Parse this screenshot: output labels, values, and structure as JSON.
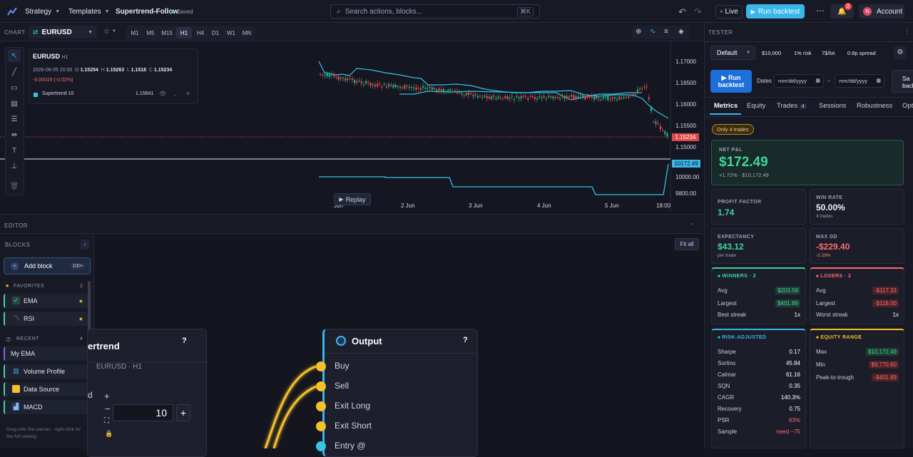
{
  "topbar": {
    "strategy": "Strategy",
    "templates": "Templates",
    "doc_name": "Supertrend-Follow",
    "saved": "Saved",
    "search_placeholder": "Search actions, blocks...",
    "search_shortcut": "⌘K",
    "live": "Live",
    "run_backtest": "Run backtest",
    "notif_count": "2",
    "account_initial": "N",
    "account": "Account"
  },
  "chart_header": {
    "section": "CHART",
    "symbol": "EURUSD",
    "star": "☆",
    "timeframes": [
      "M1",
      "M5",
      "M15",
      "H1",
      "H4",
      "D1",
      "W1",
      "MN"
    ],
    "active_tf": "H1"
  },
  "chart_info": {
    "symbol": "EURUSD",
    "tf": "H1",
    "date": "2026-06-05 20:00",
    "o_label": "O",
    "o": "1.15254",
    "h_label": "H",
    "h": "1.15263",
    "l_label": "L",
    "l": "1.1518",
    "c_label": "C",
    "c": "1.15234",
    "change": "-0.00019 (-0.02%)",
    "indicator_name": "Supertrend 10",
    "indicator_value": "1.15641"
  },
  "chart": {
    "price_ticks": [
      "1.17000",
      "1.16500",
      "1.16000",
      "1.15500",
      "1.15000"
    ],
    "current_price": "1.15234",
    "equity_ticks": [
      "10000.00",
      "9800.00"
    ],
    "equity_current": "10172.49",
    "x_ticks": [
      "Jun",
      "2 Jun",
      "3 Jun",
      "4 Jun",
      "5 Jun",
      "18:00"
    ],
    "replay": "Replay"
  },
  "editor": {
    "section": "EDITOR",
    "blocks_label": "BLOCKS",
    "add_block": "Add block",
    "add_count": "100+",
    "favorites": "FAVORITES",
    "favorites_count": "2",
    "fav_items": [
      "EMA",
      "RSI"
    ],
    "recent": "RECENT",
    "recent_count": "4",
    "recent_items": [
      "My EMA",
      "Volume Profile",
      "Data Source",
      "MACD"
    ],
    "hint": "Drag onto the canvas · right-click for the full catalog",
    "fit_all": "Fit all"
  },
  "nodes": {
    "left_title": "ertrend",
    "left_sub": "EURUSD · H1",
    "left_field_label": "d",
    "left_field_value": "10",
    "help": "?",
    "output_title": "Output",
    "outputs": [
      "Buy",
      "Sell",
      "Exit Long",
      "Exit Short",
      "Entry @"
    ]
  },
  "tester": {
    "section": "TESTER",
    "preset": "Default",
    "capital": "$10,000",
    "risk": "1% risk",
    "lot": "7$/lot",
    "spread": "0.8p spread",
    "run": "Run backtest",
    "dates_label": "Dates",
    "date_placeholder": "mm/dd/yyyy",
    "date_sep": "–",
    "save": "Sa backt",
    "tabs": [
      "Metrics",
      "Equity",
      "Trades",
      "Sessions",
      "Robustness",
      "Opti"
    ],
    "trades_count": "4",
    "warning": "Only 4 trades",
    "net_pl_label": "NET P&L",
    "net_pl": "$172.49",
    "net_pl_sub": "+1.72% · $10,172.49",
    "profit_factor_label": "PROFIT FACTOR",
    "profit_factor": "1.74",
    "win_rate_label": "WIN RATE",
    "win_rate": "50.00%",
    "win_rate_sub": "4 trades",
    "expectancy_label": "EXPECTANCY",
    "expectancy": "$43.12",
    "expectancy_sub": "per trade",
    "maxdd_label": "MAX DD",
    "maxdd": "-$229.40",
    "maxdd_sub": "-2.29%",
    "winners_label": "WINNERS · 2",
    "winners": [
      {
        "k": "Avg",
        "v": "$203.58"
      },
      {
        "k": "Largest",
        "v": "$401.89"
      },
      {
        "k": "Best streak",
        "v": "1x"
      }
    ],
    "losers_label": "LOSERS · 2",
    "losers": [
      {
        "k": "Avg",
        "v": "-$117.33"
      },
      {
        "k": "Largest",
        "v": "-$118.00"
      },
      {
        "k": "Worst streak",
        "v": "1x"
      }
    ],
    "risk_label": "RISK-ADJUSTED",
    "risk_rows": [
      {
        "k": "Sharpe",
        "v": "0.17"
      },
      {
        "k": "Sortino",
        "v": "45.84"
      },
      {
        "k": "Calmar",
        "v": "61.16"
      },
      {
        "k": "SQN",
        "v": "0.35"
      },
      {
        "k": "CAGR",
        "v": "140.3%"
      },
      {
        "k": "Recovery",
        "v": "0.75"
      },
      {
        "k": "PSR",
        "v": "63%"
      },
      {
        "k": "Sample",
        "v": "need ~75"
      }
    ],
    "equity_label": "EQUITY RANGE",
    "equity_rows": [
      {
        "k": "Max",
        "v": "$10,172.49"
      },
      {
        "k": "Min",
        "v": "$9,770.60"
      },
      {
        "k": "Peak-to-trough",
        "v": "-$401.89"
      }
    ]
  },
  "colors": {
    "accent": "#2f8cff",
    "positive": "#3fd49b",
    "negative": "#ff6b6b",
    "supertrend": "#33c3e6",
    "port": "#f5c02c"
  }
}
